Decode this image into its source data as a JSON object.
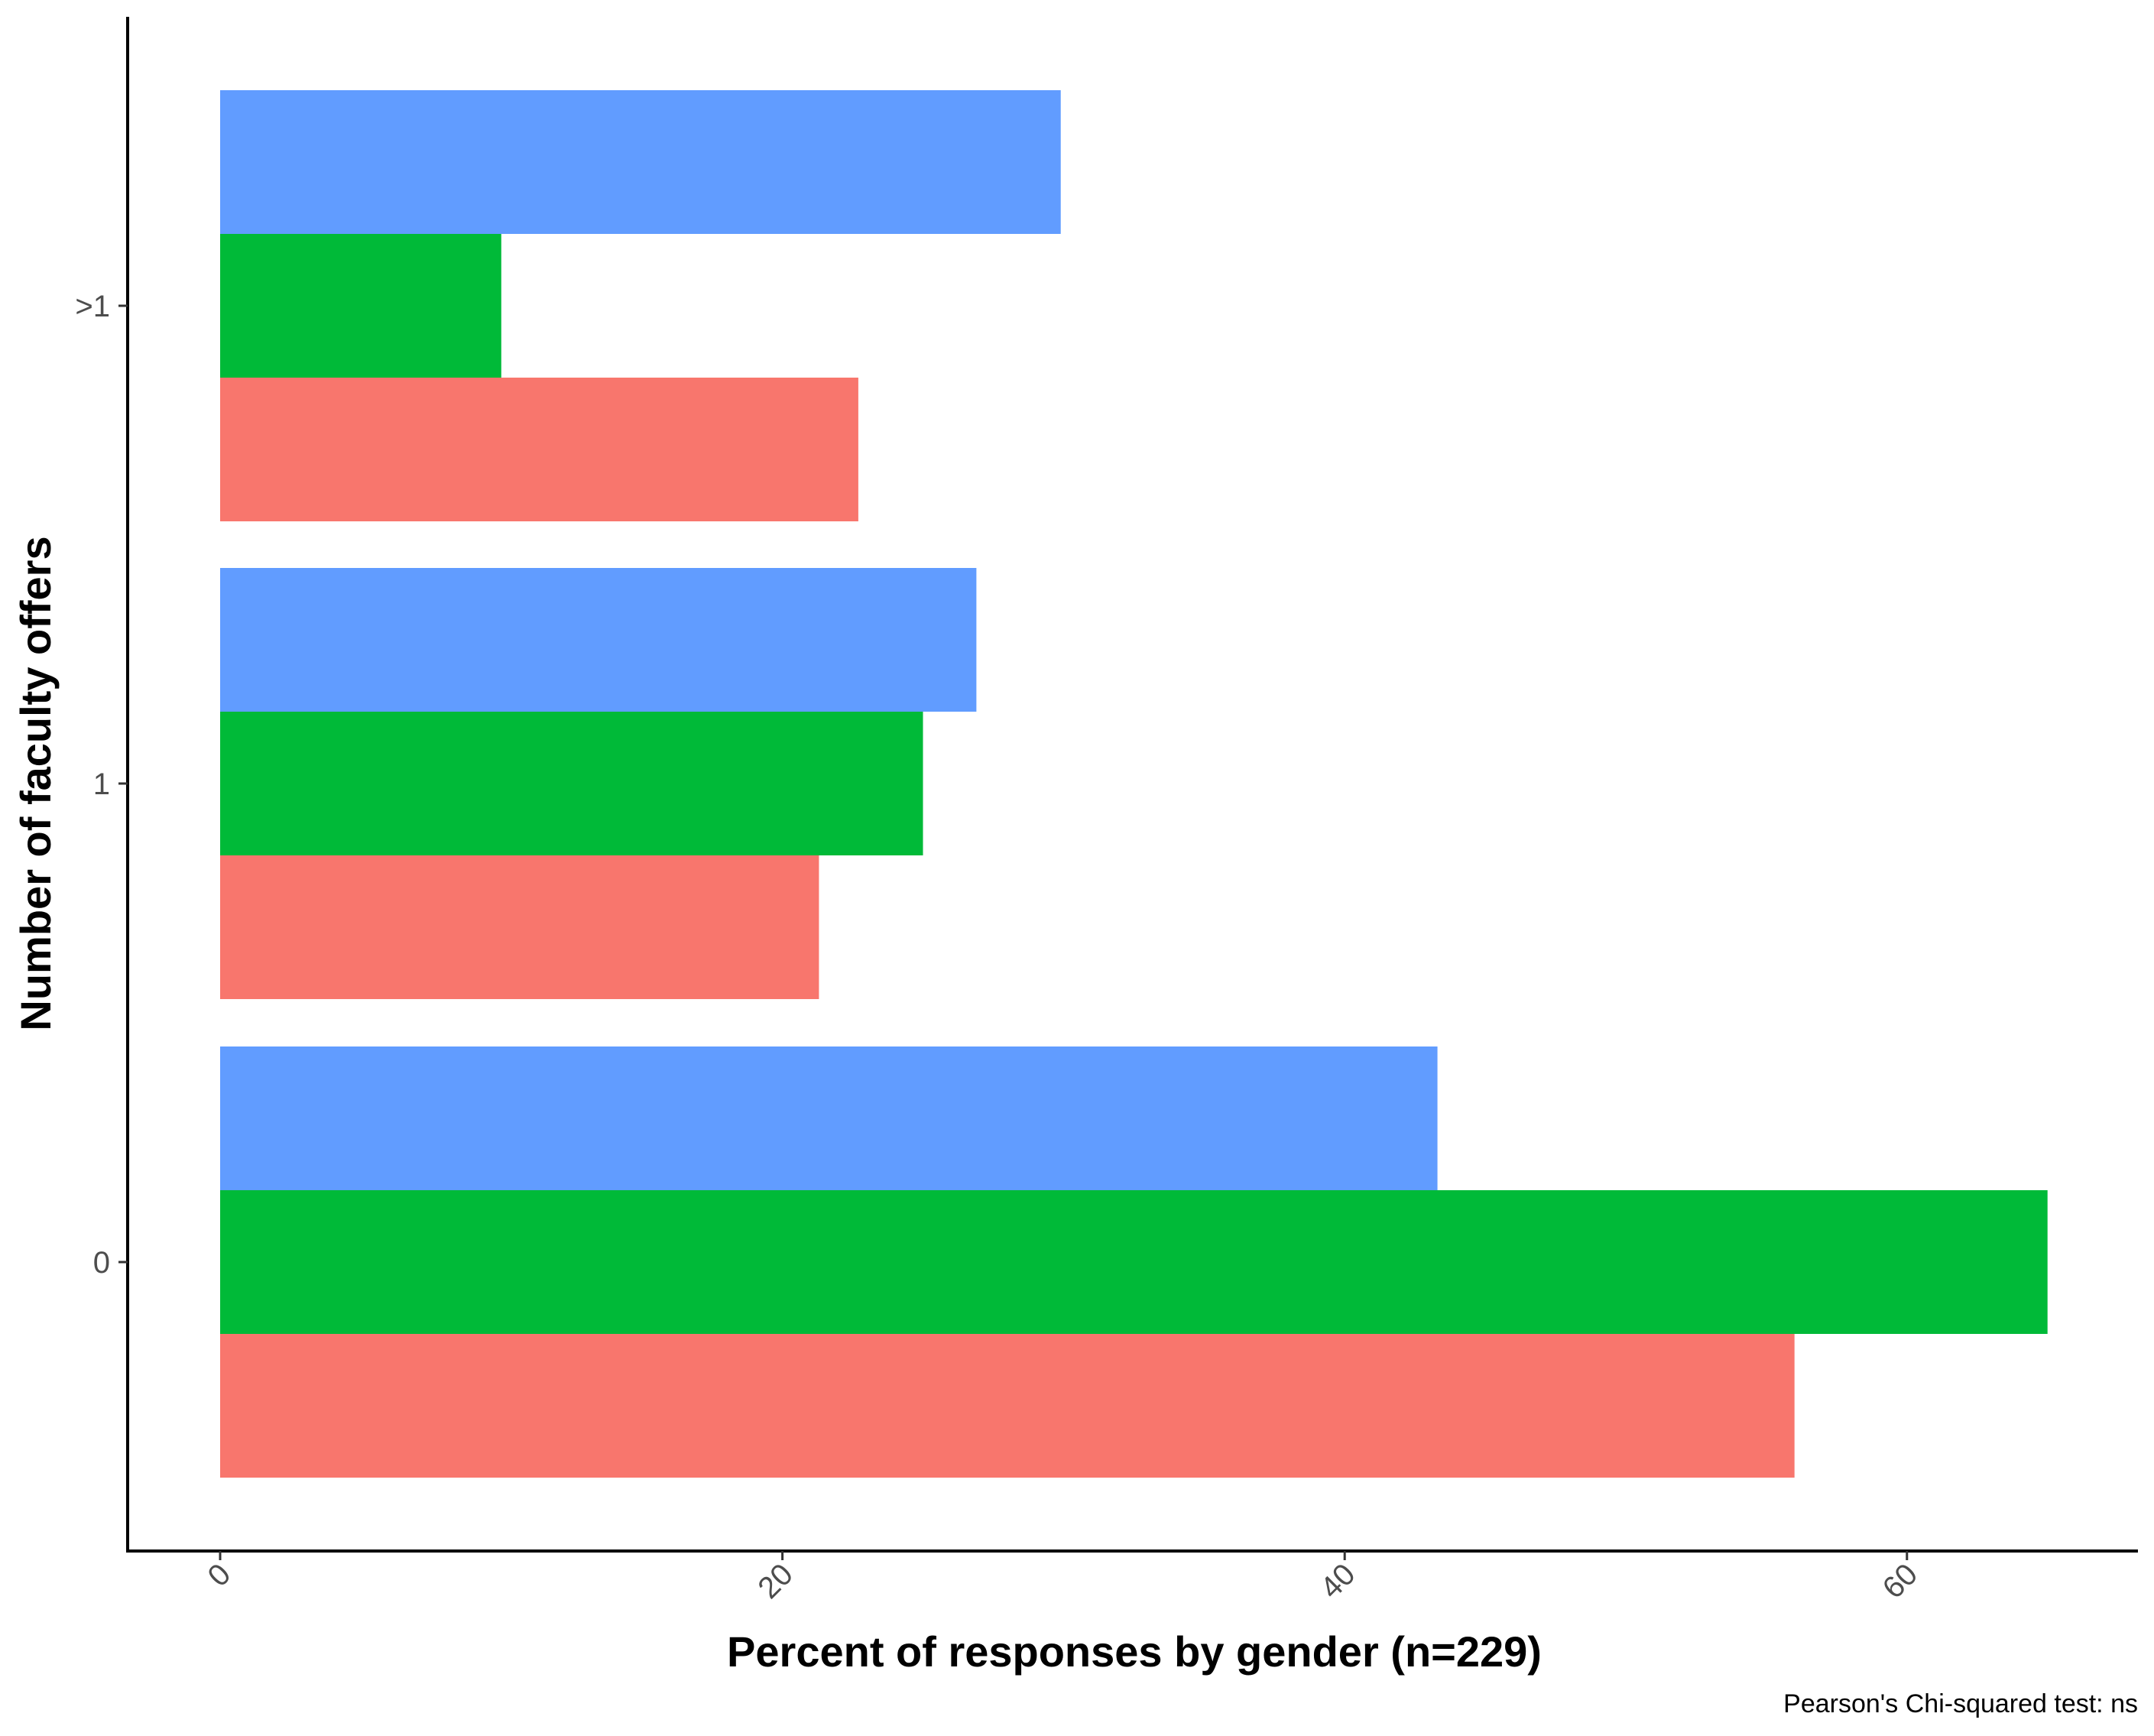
{
  "chart_data": {
    "type": "bar",
    "orientation": "horizontal",
    "categories": [
      "0",
      "1",
      ">1"
    ],
    "series": [
      {
        "color": "#F8766D",
        "values": [
          56,
          21.3,
          22.7
        ]
      },
      {
        "color": "#00BA38",
        "values": [
          65,
          25,
          10
        ]
      },
      {
        "color": "#619CFF",
        "values": [
          43.3,
          26.9,
          29.9
        ]
      }
    ],
    "xlabel": "Percent of responses by gender (n=229)",
    "ylabel": "Number of faculty offers",
    "xticks": [
      "0",
      "20",
      "40",
      "60"
    ],
    "xlim": [
      0,
      68
    ],
    "caption": "Pearson's Chi-squared test: ns",
    "grid": false,
    "legend": "none"
  }
}
